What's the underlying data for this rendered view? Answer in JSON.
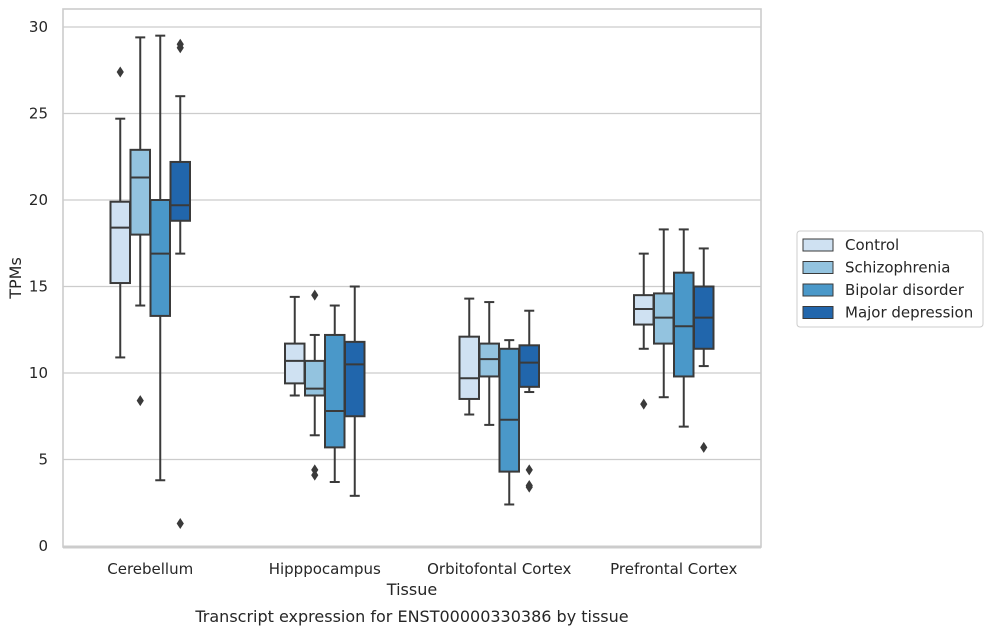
{
  "chart_data": {
    "type": "box",
    "caption": "Transcript expression for ENST00000330386 by tissue",
    "xlabel": "Tissue",
    "ylabel": "TPMs",
    "ylim": [
      0,
      31
    ],
    "yticks": [
      0,
      5,
      10,
      15,
      20,
      25,
      30
    ],
    "grid": "horizontal",
    "legend_position": "right",
    "categories": [
      "Cerebellum",
      "Hipppocampus",
      "Orbitofontal Cortex",
      "Prefrontal Cortex"
    ],
    "series": [
      {
        "name": "Control",
        "color": "#cfe1f2",
        "boxes": [
          {
            "whisker_low": 10.9,
            "q1": 15.2,
            "median": 18.4,
            "q3": 19.9,
            "whisker_high": 24.7,
            "outliers": [
              27.4
            ]
          },
          {
            "whisker_low": 8.7,
            "q1": 9.4,
            "median": 10.7,
            "q3": 11.7,
            "whisker_high": 14.4,
            "outliers": []
          },
          {
            "whisker_low": 7.6,
            "q1": 8.5,
            "median": 9.7,
            "q3": 12.1,
            "whisker_high": 14.3,
            "outliers": []
          },
          {
            "whisker_low": 11.4,
            "q1": 12.8,
            "median": 13.7,
            "q3": 14.5,
            "whisker_high": 16.9,
            "outliers": [
              8.2
            ]
          }
        ]
      },
      {
        "name": "Schizophrenia",
        "color": "#93c3df",
        "boxes": [
          {
            "whisker_low": 13.9,
            "q1": 18.0,
            "median": 21.3,
            "q3": 22.9,
            "whisker_high": 29.4,
            "outliers": [
              8.4
            ]
          },
          {
            "whisker_low": 6.4,
            "q1": 8.7,
            "median": 9.1,
            "q3": 10.7,
            "whisker_high": 12.2,
            "outliers": [
              14.5,
              4.4,
              4.1
            ]
          },
          {
            "whisker_low": 7.0,
            "q1": 9.8,
            "median": 10.8,
            "q3": 11.7,
            "whisker_high": 14.1,
            "outliers": []
          },
          {
            "whisker_low": 8.6,
            "q1": 11.7,
            "median": 13.2,
            "q3": 14.6,
            "whisker_high": 18.3,
            "outliers": []
          }
        ]
      },
      {
        "name": "Bipolar disorder",
        "color": "#4a98c9",
        "boxes": [
          {
            "whisker_low": 3.8,
            "q1": 13.3,
            "median": 16.9,
            "q3": 20.0,
            "whisker_high": 29.5,
            "outliers": []
          },
          {
            "whisker_low": 3.7,
            "q1": 5.7,
            "median": 7.8,
            "q3": 12.2,
            "whisker_high": 13.9,
            "outliers": []
          },
          {
            "whisker_low": 2.4,
            "q1": 4.3,
            "median": 7.3,
            "q3": 11.4,
            "whisker_high": 11.9,
            "outliers": []
          },
          {
            "whisker_low": 6.9,
            "q1": 9.8,
            "median": 12.7,
            "q3": 15.8,
            "whisker_high": 18.3,
            "outliers": []
          }
        ]
      },
      {
        "name": "Major depression",
        "color": "#2166ac",
        "boxes": [
          {
            "whisker_low": 16.9,
            "q1": 18.8,
            "median": 19.7,
            "q3": 22.2,
            "whisker_high": 26.0,
            "outliers": [
              29.0,
              28.8,
              1.3
            ]
          },
          {
            "whisker_low": 2.9,
            "q1": 7.5,
            "median": 10.5,
            "q3": 11.8,
            "whisker_high": 15.0,
            "outliers": []
          },
          {
            "whisker_low": 8.9,
            "q1": 9.2,
            "median": 10.6,
            "q3": 11.6,
            "whisker_high": 13.6,
            "outliers": [
              4.4,
              3.5,
              3.4
            ]
          },
          {
            "whisker_low": 10.4,
            "q1": 11.4,
            "median": 13.2,
            "q3": 15.0,
            "whisker_high": 17.2,
            "outliers": [
              5.7
            ]
          }
        ]
      }
    ]
  }
}
